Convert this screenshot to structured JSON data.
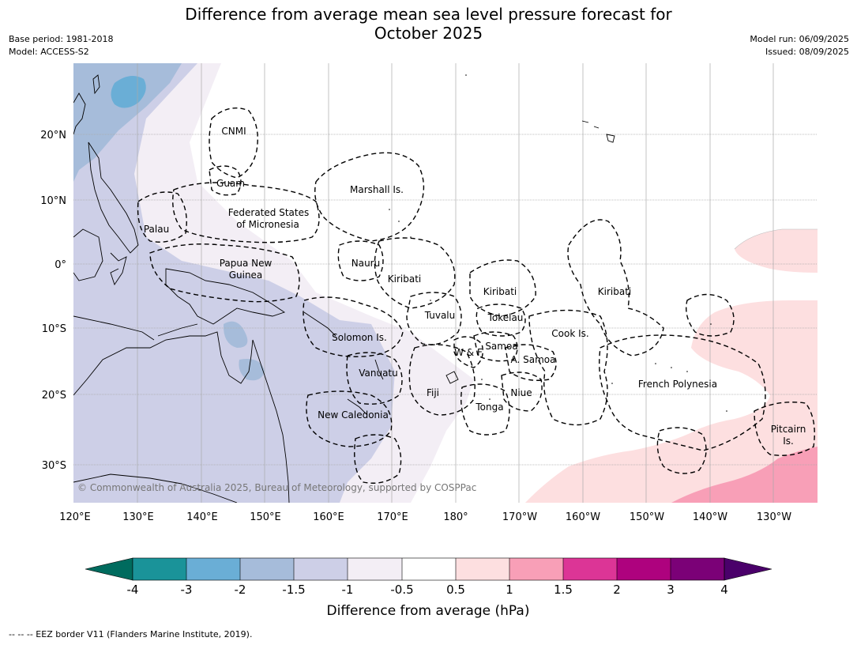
{
  "title": "Difference from average mean sea level pressure forecast for October 2025",
  "title_line1": "Difference from average mean sea level pressure forecast for",
  "title_line2": "October 2025",
  "meta_left": {
    "base_period": "Base period: 1981-2018",
    "model": "Model: ACCESS-S2"
  },
  "meta_right": {
    "model_run": "Model run: 06/09/2025",
    "issued": "Issued: 08/09/2025"
  },
  "lon_ticks": [
    "120°E",
    "130°E",
    "140°E",
    "150°E",
    "160°E",
    "170°E",
    "180°",
    "170°W",
    "160°W",
    "150°W",
    "140°W",
    "130°W"
  ],
  "lat_ticks": [
    "20°N",
    "10°N",
    "0°",
    "10°S",
    "20°S",
    "30°S"
  ],
  "region_labels": {
    "cnmi": "CNMI",
    "guam": "Guam",
    "marshall": "Marshall Is.",
    "fsm_1": "Federated States",
    "fsm_2": "of Micronesia",
    "palau": "Palau",
    "png_1": "Papua New",
    "png_2": "Guinea",
    "nauru": "Nauru",
    "kiribati_w": "Kiribati",
    "kiribati_c": "Kiribati",
    "kiribati_e": "Kiribati",
    "tuvalu": "Tuvalu",
    "tokelau": "Tokelau",
    "cook": "Cook Is.",
    "solomon": "Solomon Is.",
    "samoa": "Samoa",
    "wf": "W & F",
    "asamoa": "A. Samoa",
    "vanuatu": "Vanuatu",
    "fiji": "Fiji",
    "niue": "Niue",
    "tonga": "Tonga",
    "newcal": "New Caledonia",
    "frpoly": "French Polynesia",
    "pitcairn_1": "Pitcairn",
    "pitcairn_2": "Is."
  },
  "copyright": "© Commonwealth of Australia 2025, Bureau of Meteorology, supported by COSPPac",
  "colorbar": {
    "label": "Difference from average (hPa)",
    "ticks": [
      "-4",
      "-3",
      "-2",
      "-1.5",
      "-1",
      "-0.5",
      "0.5",
      "1",
      "1.5",
      "2",
      "3",
      "4"
    ],
    "colors": {
      "under": "#006b5e",
      "c1": "#1a9399",
      "c2": "#6aaed6",
      "c3": "#a6bcda",
      "c4": "#cdcfe7",
      "c5": "#f3eef5",
      "c6": "#ffffff",
      "c7": "#fddfe0",
      "c8": "#f89fb7",
      "c9": "#dc3596",
      "c10": "#ae027e",
      "c11": "#7b0177",
      "over": "#4a006a"
    }
  },
  "footnote": "-- -- -- EEZ border V11 (Flanders Marine Institute, 2019)."
}
